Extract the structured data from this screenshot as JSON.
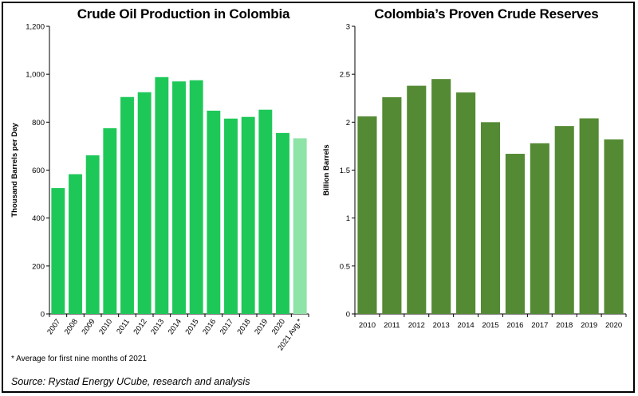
{
  "footnote": "* Average for first nine months of 2021",
  "source": "Source: Rystad Energy UCube, research and analysis",
  "colors": {
    "production_bar": "#1ec858",
    "production_estimate_bar": "#8ee3a6",
    "reserves_bar": "#548a33",
    "axis": "#000000",
    "background": "#ffffff"
  },
  "chart_data": [
    {
      "type": "bar",
      "title": "Crude Oil Production in Colombia",
      "xlabel": "",
      "ylabel": "Thousand Barrels per Day",
      "categories": [
        "2007",
        "2008",
        "2009",
        "2010",
        "2011",
        "2012",
        "2013",
        "2014",
        "2015",
        "2016",
        "2017",
        "2018",
        "2019",
        "2020",
        "2021 Avg.*"
      ],
      "values": [
        525,
        583,
        662,
        775,
        905,
        925,
        988,
        970,
        975,
        848,
        815,
        822,
        852,
        755,
        733
      ],
      "highlight_last": true,
      "ylim": [
        0,
        1200
      ],
      "yticks": [
        0,
        200,
        400,
        600,
        800,
        1000,
        1200
      ],
      "ytick_labels": [
        "0",
        "200",
        "400",
        "600",
        "800",
        "1,000",
        "1,200"
      ],
      "grid": false,
      "x_label_rotation": "diagonal"
    },
    {
      "type": "bar",
      "title": "Colombia’s Proven Crude Reserves",
      "xlabel": "",
      "ylabel": "Billion Barrels",
      "categories": [
        "2010",
        "2011",
        "2012",
        "2013",
        "2014",
        "2015",
        "2016",
        "2017",
        "2018",
        "2019",
        "2020"
      ],
      "values": [
        2.06,
        2.26,
        2.38,
        2.45,
        2.31,
        2.0,
        1.67,
        1.78,
        1.96,
        2.04,
        1.82
      ],
      "ylim": [
        0,
        3
      ],
      "yticks": [
        0,
        0.5,
        1,
        1.5,
        2,
        2.5,
        3
      ],
      "ytick_labels": [
        "0",
        "0.5",
        "1",
        "1.5",
        "2",
        "2.5",
        "3"
      ],
      "grid": false,
      "x_label_rotation": "horizontal"
    }
  ]
}
